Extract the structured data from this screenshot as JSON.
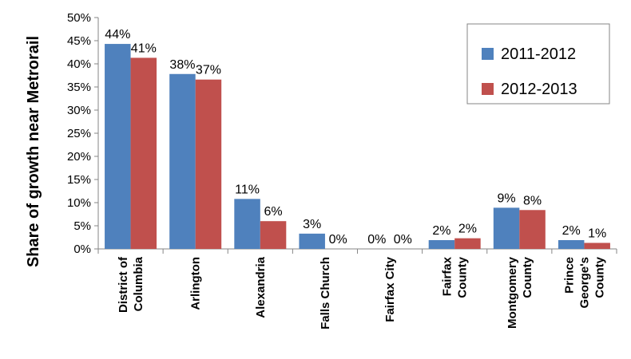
{
  "chart_data": {
    "type": "bar",
    "ylabel": "Share of growth near Metrorail",
    "xlabel": "",
    "ylim": [
      0,
      50
    ],
    "yticks": [
      "0%",
      "5%",
      "10%",
      "15%",
      "20%",
      "25%",
      "30%",
      "35%",
      "40%",
      "45%",
      "50%"
    ],
    "categories": [
      [
        "District of",
        "Columbia"
      ],
      [
        "Arlington"
      ],
      [
        "Alexandria"
      ],
      [
        "Falls Church"
      ],
      [
        "Fairfax City"
      ],
      [
        "Fairfax",
        "County"
      ],
      [
        "Montgomery",
        "County"
      ],
      [
        "Prince",
        "George's",
        "County"
      ]
    ],
    "series": [
      {
        "name": "2011-2012",
        "color": "#4F81BD",
        "values": [
          44.3,
          37.8,
          10.8,
          3.3,
          0,
          1.9,
          8.9,
          1.9
        ],
        "labels": [
          "44%",
          "38%",
          "11%",
          "3%",
          "0%",
          "2%",
          "9%",
          "2%"
        ]
      },
      {
        "name": "2012-2013",
        "color": "#C0504D",
        "values": [
          41.3,
          36.6,
          6.0,
          0,
          0,
          2.3,
          8.4,
          1.3
        ],
        "labels": [
          "41%",
          "37%",
          "6%",
          "0%",
          "0%",
          "2%",
          "8%",
          "1%"
        ]
      }
    ],
    "grid": false,
    "legend_position": "top-right"
  }
}
